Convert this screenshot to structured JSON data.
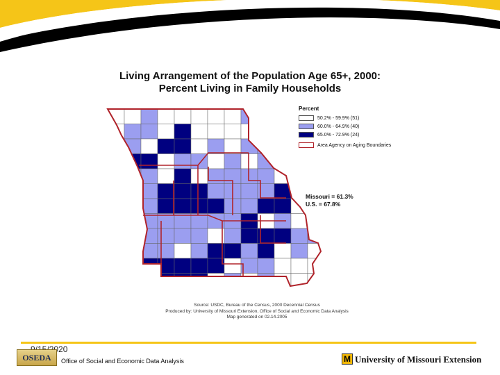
{
  "title": {
    "line1": "Living Arrangement of the Population Age 65+, 2000:",
    "line2": "Percent Living in Family Households"
  },
  "legend": {
    "heading": "Percent",
    "classes": [
      {
        "label": "50.2% - 59.9% (51)",
        "color": "#ffffff"
      },
      {
        "label": "60.0% - 64.9% (40)",
        "color": "#9b9ef0"
      },
      {
        "label": "65.0% - 72.9% (24)",
        "color": "#000080"
      }
    ],
    "boundary_label": "Area Agency on Aging Boundaries",
    "boundary_color": "#b0232a"
  },
  "stats": {
    "missouri": "Missouri = 61.3%",
    "us": "U.S. = 67.8%"
  },
  "source": {
    "line1": "Source: USDC, Bureau of the Census, 2000 Decennial Census",
    "line2": "Produced by: University of Missouri Extension, Office of Social and Economic Data Analysis",
    "line3": "Map generated on 02.14.2005"
  },
  "footer": {
    "date": "9/15/2020",
    "oseda_logo_text": "OSEDA",
    "office": "Office of Social and Economic Data Analysis",
    "mu_logo_text": "M",
    "university": "University of Missouri Extension"
  },
  "colors": {
    "banner_yellow": "#f5c518",
    "banner_black": "#000000",
    "class_low": "#ffffff",
    "class_mid": "#9b9ef0",
    "class_high": "#000080"
  }
}
